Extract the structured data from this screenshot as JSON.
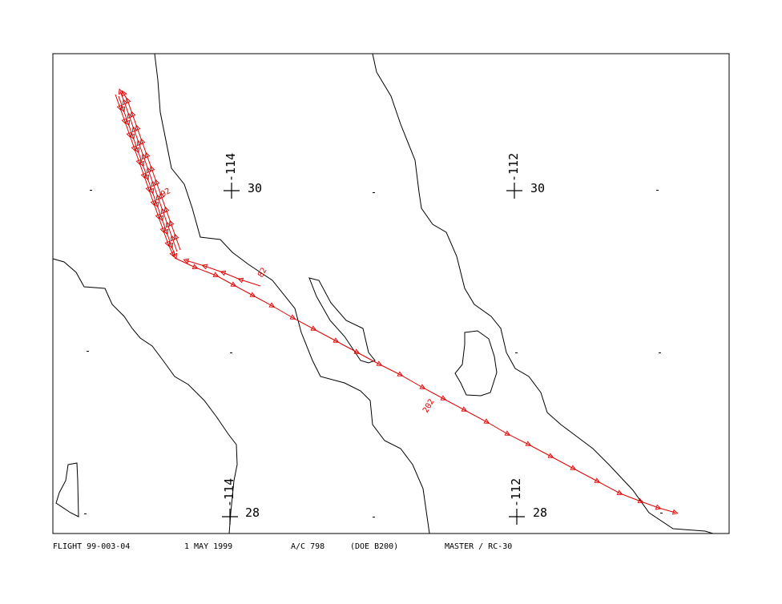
{
  "map": {
    "grid_labels": [
      {
        "lon": "-114",
        "lat": "30"
      },
      {
        "lon": "-112",
        "lat": "30"
      },
      {
        "lon": "-114",
        "lat": "28"
      },
      {
        "lon": "-112",
        "lat": "28"
      }
    ],
    "flight_line_labels": [
      "92",
      "82",
      "202"
    ],
    "footer": {
      "flight": "FLIGHT 99-003-04",
      "date": "1 MAY 1999",
      "aircraft": "A/C 798",
      "aircraft_type": "(DOE B200)",
      "sensor": "MASTER / RC-30"
    }
  }
}
